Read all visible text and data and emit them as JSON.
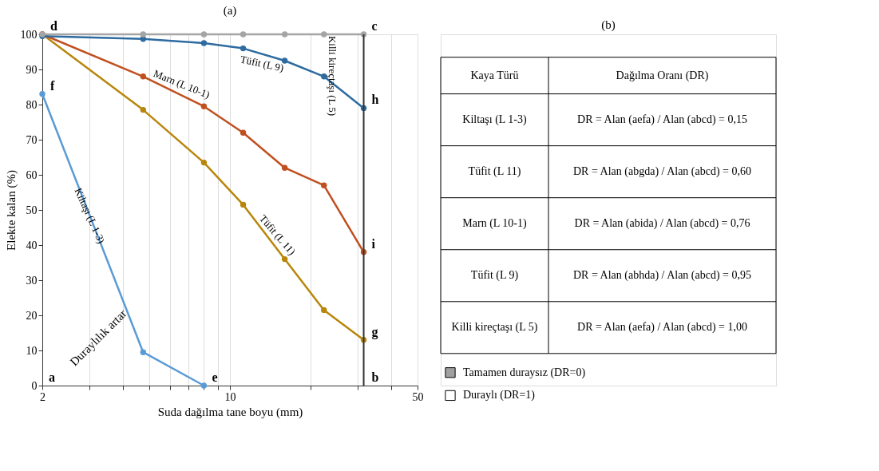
{
  "chart_data": {
    "type": "line",
    "title": "(a)",
    "xlabel": "Suda dağılma tane boyu (mm)",
    "ylabel": "Elekte kalan (%)",
    "log": "x",
    "xlim": [
      2,
      50
    ],
    "ylim": [
      0,
      100
    ],
    "xticks": [
      2,
      {
        "value": 3,
        "label": null
      },
      {
        "value": 4,
        "label": null
      },
      {
        "value": 5,
        "label": null
      },
      {
        "value": 6,
        "label": null
      },
      {
        "value": 7,
        "label": null
      },
      {
        "value": 8,
        "label": null
      },
      {
        "value": 9,
        "label": null
      },
      10,
      {
        "value": 20,
        "label": null
      },
      {
        "value": 30,
        "label": null
      },
      {
        "value": 40,
        "label": null
      },
      50
    ],
    "yticks": [
      0,
      10,
      20,
      30,
      40,
      50,
      60,
      70,
      80,
      90,
      100
    ],
    "grid": "x",
    "marker": "circle",
    "line_style": "solid",
    "series": [
      {
        "name": "Kiltaşı (L 1-3)",
        "color": "#5b9bd5",
        "x": [
          2,
          4.75,
          8
        ],
        "values": [
          83,
          9.5,
          0
        ]
      },
      {
        "name": "Tüfit (L 11)",
        "color": "#b8860b",
        "x": [
          2,
          4.75,
          8,
          11.2,
          16,
          22.4,
          31.5
        ],
        "values": [
          100,
          78.5,
          63.5,
          51.5,
          36,
          21.5,
          13
        ]
      },
      {
        "name": "Marn (L 10-1)",
        "color": "#c0501f",
        "x": [
          2,
          4.75,
          8,
          11.2,
          16,
          22.4,
          31.5
        ],
        "values": [
          100,
          88,
          79.5,
          72,
          62,
          57,
          38
        ]
      },
      {
        "name": "Tüfit (L 9)",
        "color": "#2e6ba0",
        "x": [
          2,
          4.75,
          8,
          11.2,
          16,
          22.4,
          31.5
        ],
        "values": [
          99.5,
          98.7,
          97.5,
          96,
          92.5,
          88,
          79
        ]
      },
      {
        "name": "Killi kireçtaşı (L 5)",
        "color": "#a5a5a5",
        "x": [
          2,
          4.75,
          8,
          11.2,
          16,
          22.4,
          31.5
        ],
        "values": [
          100,
          100,
          100,
          100,
          100,
          100,
          100
        ]
      }
    ],
    "ref_lines": [
      {
        "axis": "x",
        "value": 31.5,
        "color": "#333333"
      }
    ],
    "annotations": [
      "(b)",
      "Kaya Türü",
      "Dağılma Oranı (DR)",
      "Kiltaşı (L 1-3)",
      "DR = Alan (aefa) / Alan (abcd) = 0,15",
      "Tüfit (L 11)",
      "DR = Alan (abgda) / Alan (abcd) = 0,60",
      "Marn (L 10-1)",
      "DR = Alan (abida) / Alan (abcd) = 0,76",
      "Tüfit (L 9)",
      "DR = Alan (abhda) / Alan (abcd) = 0,95",
      "Killi kireçtaşı (L 5)",
      "DR = Alan (aefa) / Alan (abcd) = 1,00",
      "Tamamen duraysız (DR=0)",
      "Duraylı (DR=1)",
      "Duraylılık artar",
      "a",
      {
        "text": "b",
        "x": 31.5,
        "y": 0
      },
      {
        "text": "c",
        "x": 31.5,
        "y": 100
      },
      {
        "text": "d",
        "x": 2,
        "y": 100
      },
      {
        "text": "e",
        "x": 8,
        "y": 0
      },
      {
        "text": "f",
        "x": 2,
        "y": 83
      },
      {
        "text": "g",
        "x": 31.5,
        "y": 13
      },
      {
        "text": "h",
        "x": 31.5,
        "y": 79
      },
      {
        "text": "i",
        "x": 31.5,
        "y": 38
      }
    ]
  }
}
